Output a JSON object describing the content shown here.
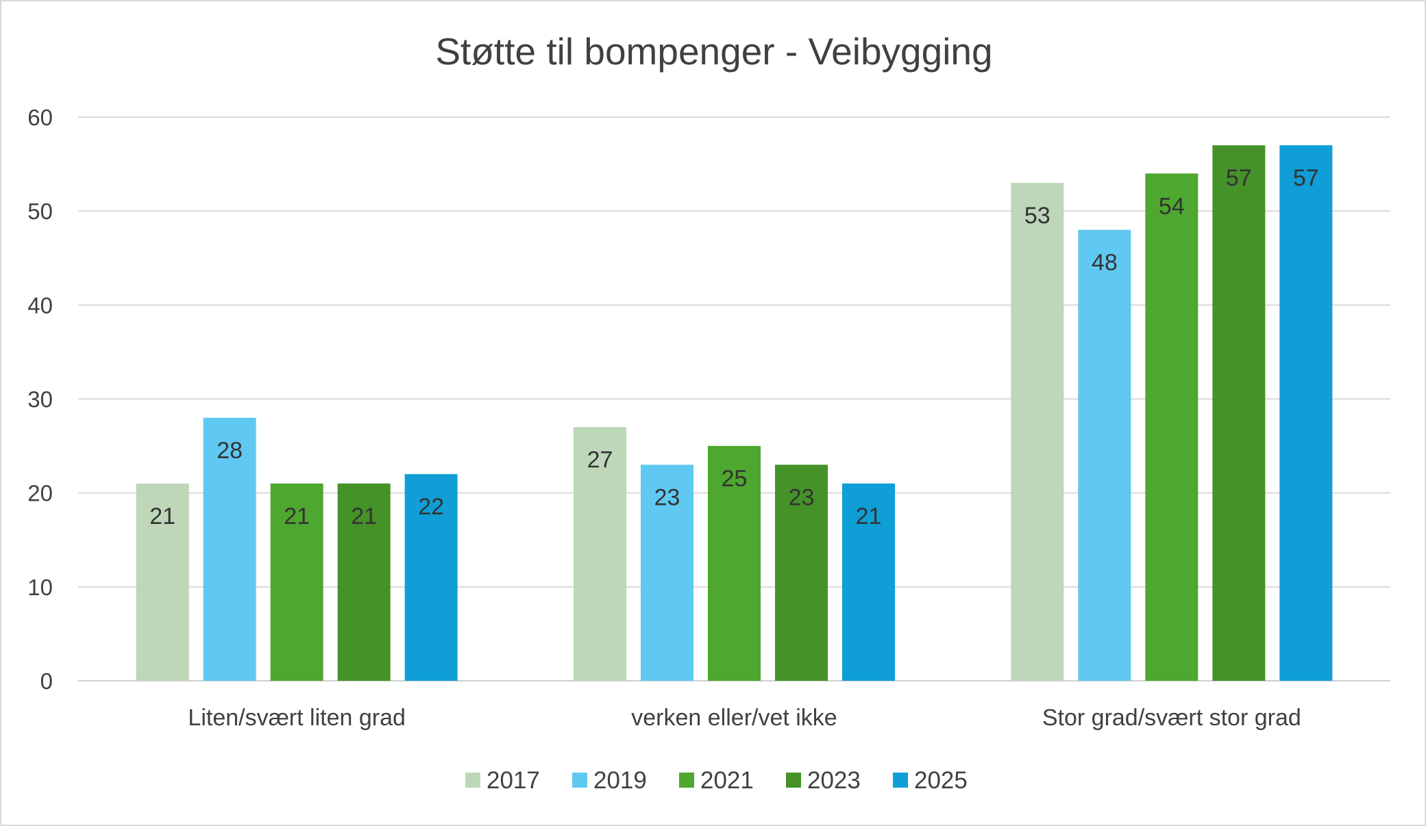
{
  "chart_data": {
    "type": "bar",
    "title": "Støtte til bompenger - Veibygging",
    "xlabel": "",
    "ylabel": "",
    "ylim": [
      0,
      60
    ],
    "yticks": [
      0,
      10,
      20,
      30,
      40,
      50,
      60
    ],
    "grid": true,
    "legend": "bottom",
    "categories": [
      "Liten/svært liten grad",
      "verken eller/vet ikke",
      "Stor grad/svært stor grad"
    ],
    "series": [
      {
        "name": "2017",
        "color": "#bdd7b8",
        "values": [
          21,
          27,
          53
        ]
      },
      {
        "name": "2019",
        "color": "#60c9f2",
        "values": [
          28,
          23,
          48
        ]
      },
      {
        "name": "2021",
        "color": "#4ea72e",
        "values": [
          21,
          25,
          54
        ]
      },
      {
        "name": "2023",
        "color": "#449228",
        "values": [
          21,
          23,
          57
        ]
      },
      {
        "name": "2025",
        "color": "#0f9ed6",
        "values": [
          22,
          21,
          57
        ]
      }
    ]
  }
}
